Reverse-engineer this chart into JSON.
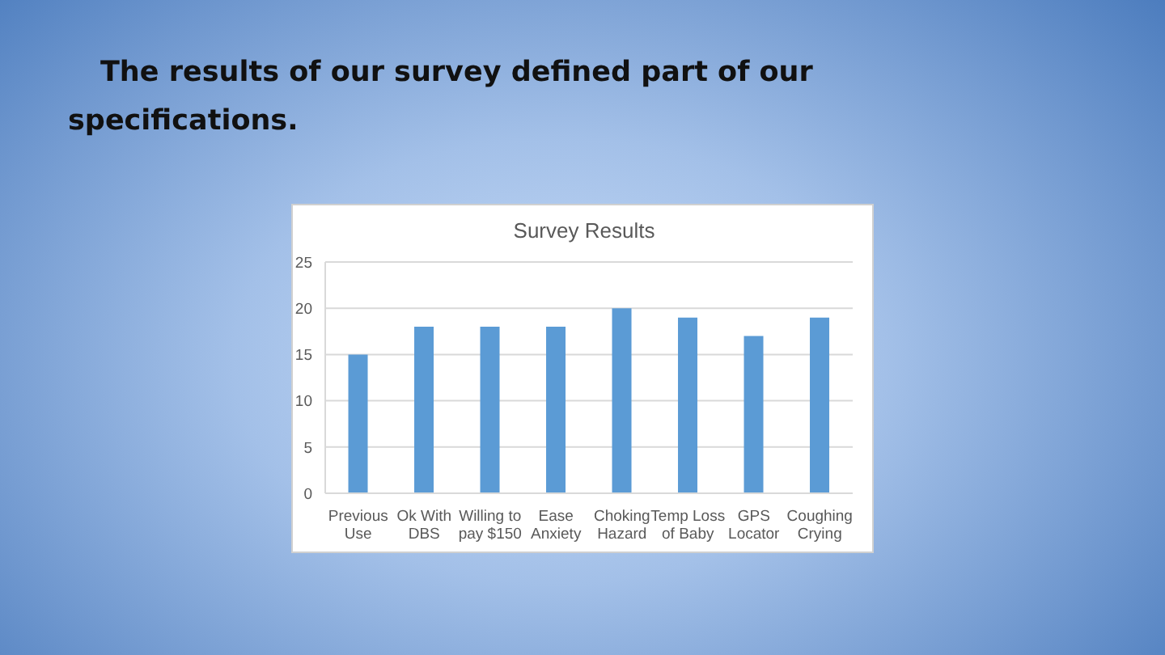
{
  "chart_data": {
    "type": "bar",
    "title": "Survey Results",
    "annotations": [
      "The results of our survey defined part of our specifications."
    ],
    "categories": [
      "Previous Use",
      "Ok With DBS",
      "Willing to pay $150",
      "Ease Anxiety",
      "Choking Hazard",
      "Temp Loss of Baby",
      "GPS Locator",
      "Coughing Crying"
    ],
    "values": [
      15,
      18,
      18,
      18,
      20,
      19,
      17,
      19
    ],
    "color": "#5b9bd5",
    "ylim": [
      0,
      25
    ],
    "yticks": [
      0,
      5,
      10,
      15,
      20,
      25
    ],
    "grid": "y"
  }
}
